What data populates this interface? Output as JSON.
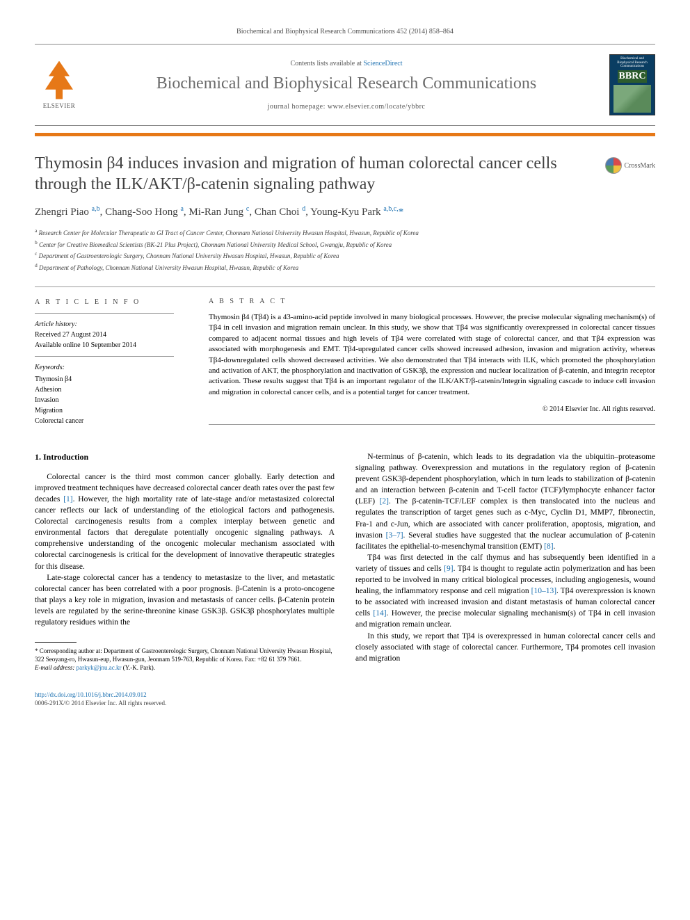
{
  "header": {
    "citation": "Biochemical and Biophysical Research Communications 452 (2014) 858–864",
    "contents_prefix": "Contents lists available at ",
    "contents_link": "ScienceDirect",
    "journal_name": "Biochemical and Biophysical Research Communications",
    "homepage_prefix": "journal homepage: ",
    "homepage_url": "www.elsevier.com/locate/ybbrc",
    "publisher": "ELSEVIER",
    "cover_bbrc": "BBRC"
  },
  "article": {
    "title": "Thymosin β4 induces invasion and migration of human colorectal cancer cells through the ILK/AKT/β-catenin signaling pathway",
    "crossmark": "CrossMark",
    "authors_html": "Zhengri Piao <sup>a,b</sup>, Chang-Soo Hong <sup>a</sup>, Mi-Ran Jung <sup>c</sup>, Chan Choi <sup>d</sup>, Young-Kyu Park <sup>a,b,c,</sup>",
    "author_star": "*",
    "affiliations": [
      {
        "sup": "a",
        "text": "Research Center for Molecular Therapeutic to GI Tract of Cancer Center, Chonnam National University Hwasun Hospital, Hwasun, Republic of Korea"
      },
      {
        "sup": "b",
        "text": "Center for Creative Biomedical Scientists (BK-21 Plus Project), Chonnam National University Medical School, Gwangju, Republic of Korea"
      },
      {
        "sup": "c",
        "text": "Department of Gastroenterologic Surgery, Chonnam National University Hwasun Hospital, Hwasun, Republic of Korea"
      },
      {
        "sup": "d",
        "text": "Department of Pathology, Chonnam National University Hwasun Hospital, Hwasun, Republic of Korea"
      }
    ]
  },
  "info": {
    "heading": "A R T I C L E   I N F O",
    "history_label": "Article history:",
    "received": "Received 27 August 2014",
    "online": "Available online 10 September 2014",
    "keywords_label": "Keywords:",
    "keywords": [
      "Thymosin β4",
      "Adhesion",
      "Invasion",
      "Migration",
      "Colorectal cancer"
    ]
  },
  "abstract": {
    "heading": "A B S T R A C T",
    "text": "Thymosin β4 (Tβ4) is a 43-amino-acid peptide involved in many biological processes. However, the precise molecular signaling mechanism(s) of Tβ4 in cell invasion and migration remain unclear. In this study, we show that Tβ4 was significantly overexpressed in colorectal cancer tissues compared to adjacent normal tissues and high levels of Tβ4 were correlated with stage of colorectal cancer, and that Tβ4 expression was associated with morphogenesis and EMT. Tβ4-upregulated cancer cells showed increased adhesion, invasion and migration activity, whereas Tβ4-downregulated cells showed decreased activities. We also demonstrated that Tβ4 interacts with ILK, which promoted the phosphorylation and activation of AKT, the phosphorylation and inactivation of GSK3β, the expression and nuclear localization of β-catenin, and integrin receptor activation. These results suggest that Tβ4 is an important regulator of the ILK/AKT/β-catenin/Integrin signaling cascade to induce cell invasion and migration in colorectal cancer cells, and is a potential target for cancer treatment.",
    "copyright": "© 2014 Elsevier Inc. All rights reserved."
  },
  "body": {
    "section_heading": "1. Introduction",
    "left_paras": [
      "Colorectal cancer is the third most common cancer globally. Early detection and improved treatment techniques have decreased colorectal cancer death rates over the past few decades [1]. However, the high mortality rate of late-stage and/or metastasized colorectal cancer reflects our lack of understanding of the etiological factors and pathogenesis. Colorectal carcinogenesis results from a complex interplay between genetic and environmental factors that deregulate potentially oncogenic signaling pathways. A comprehensive understanding of the oncogenic molecular mechanism associated with colorectal carcinogenesis is critical for the development of innovative therapeutic strategies for this disease.",
      "Late-stage colorectal cancer has a tendency to metastasize to the liver, and metastatic colorectal cancer has been correlated with a poor prognosis. β-Catenin is a proto-oncogene that plays a key role in migration, invasion and metastasis of cancer cells. β-Catenin protein levels are regulated by the serine-threonine kinase GSK3β. GSK3β phosphorylates multiple regulatory residues within the"
    ],
    "right_paras": [
      "N-terminus of β-catenin, which leads to its degradation via the ubiquitin–proteasome signaling pathway. Overexpression and mutations in the regulatory region of β-catenin prevent GSK3β-dependent phosphorylation, which in turn leads to stabilization of β-catenin and an interaction between β-catenin and T-cell factor (TCF)/lymphocyte enhancer factor (LEF) [2]. The β-catenin-TCF/LEF complex is then translocated into the nucleus and regulates the transcription of target genes such as c-Myc, Cyclin D1, MMP7, fibronectin, Fra-1 and c-Jun, which are associated with cancer proliferation, apoptosis, migration, and invasion [3–7]. Several studies have suggested that the nuclear accumulation of β-catenin facilitates the epithelial-to-mesenchymal transition (EMT) [8].",
      "Tβ4 was first detected in the calf thymus and has subsequently been identified in a variety of tissues and cells [9]. Tβ4 is thought to regulate actin polymerization and has been reported to be involved in many critical biological processes, including angiogenesis, wound healing, the inflammatory response and cell migration [10–13]. Tβ4 overexpression is known to be associated with increased invasion and distant metastasis of human colorectal cancer cells [14]. However, the precise molecular signaling mechanism(s) of Tβ4 in cell invasion and migration remain unclear.",
      "In this study, we report that Tβ4 is overexpressed in human colorectal cancer cells and closely associated with stage of colorectal cancer. Furthermore, Tβ4 promotes cell invasion and migration"
    ]
  },
  "footnotes": {
    "corr": "* Corresponding author at: Department of Gastroenterologic Surgery, Chonnam National University Hwasun Hospital, 322 Seoyang-ro, Hwasun-eup, Hwasun-gun, Jeonnam 519-763, Republic of Korea. Fax: +82 61 379 7661.",
    "email_label": "E-mail address: ",
    "email": "parkyk@jnu.ac.kr",
    "email_suffix": " (Y.-K. Park)."
  },
  "footer": {
    "doi": "http://dx.doi.org/10.1016/j.bbrc.2014.09.012",
    "issn": "0006-291X/© 2014 Elsevier Inc. All rights reserved."
  },
  "refs": {
    "r1": "[1]",
    "r2": "[2]",
    "r37": "[3–7]",
    "r8": "[8]",
    "r9": "[9]",
    "r1013": "[10–13]",
    "r14": "[14]"
  },
  "colors": {
    "accent_orange": "#e67817",
    "link_blue": "#1a6fb0",
    "text_gray": "#404040"
  }
}
